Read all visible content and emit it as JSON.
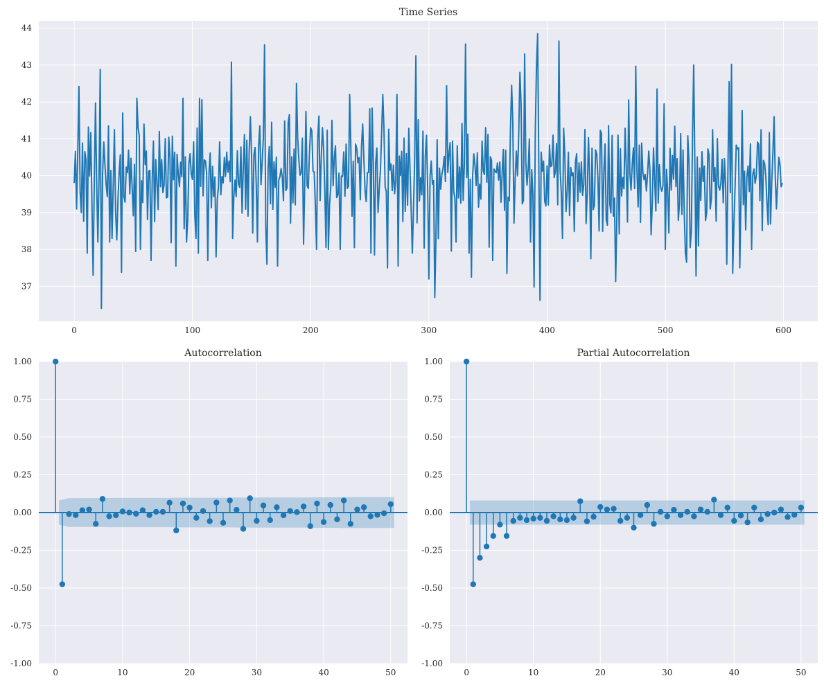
{
  "figure": {
    "background": "#ffffff",
    "axes_bg": "#EAEAF2",
    "grid_color": "#ffffff",
    "accent": "#1f77b4"
  },
  "chart_data": [
    {
      "id": "ts",
      "type": "line",
      "title": "Time Series",
      "xlabel": "",
      "ylabel": "",
      "xlim": [
        -29.95,
        628.95
      ],
      "ylim": [
        36.05,
        44.2
      ],
      "xticks": [
        0,
        100,
        200,
        300,
        400,
        500,
        600
      ],
      "yticks": [
        37,
        38,
        39,
        40,
        41,
        42,
        43,
        44
      ],
      "grid": true,
      "n_points": 600,
      "seed": 7,
      "mean": 40.0,
      "sd": 0.95,
      "series": [
        {
          "name": "series",
          "color": "#1f77b4",
          "anchor_points": [
            [
              0,
              39.8
            ],
            [
              1,
              40.66
            ],
            [
              2,
              39.1
            ],
            [
              4,
              42.42
            ],
            [
              6,
              39.0
            ],
            [
              9,
              40.65
            ],
            [
              11,
              37.9
            ],
            [
              14,
              41.17
            ],
            [
              16,
              37.3
            ],
            [
              18,
              41.97
            ],
            [
              20,
              38.2
            ],
            [
              22,
              42.88
            ],
            [
              23,
              36.4
            ],
            [
              26,
              40.3
            ],
            [
              29,
              41.35
            ],
            [
              30,
              38.2
            ],
            [
              32,
              38.3
            ],
            [
              34,
              41.25
            ],
            [
              36,
              38.26
            ],
            [
              40,
              37.38
            ],
            [
              41,
              41.7
            ],
            [
              54,
              41.3
            ],
            [
              56,
              38.0
            ],
            [
              59,
              41.4
            ],
            [
              65,
              37.7
            ],
            [
              72,
              41.2
            ],
            [
              86,
              37.55
            ],
            [
              92,
              42.1
            ],
            [
              95,
              38.2
            ],
            [
              103,
              38.3
            ],
            [
              108,
              42.06
            ],
            [
              113,
              37.7
            ],
            [
              120,
              37.8
            ],
            [
              133,
              43.08
            ],
            [
              149,
              41.6
            ],
            [
              155,
              38.2
            ],
            [
              157,
              41.35
            ],
            [
              161,
              43.55
            ],
            [
              163,
              37.6
            ],
            [
              167,
              41.45
            ],
            [
              172,
              37.55
            ],
            [
              181,
              41.45
            ],
            [
              188,
              42.5
            ],
            [
              200,
              41.3
            ],
            [
              205,
              38.0
            ],
            [
              210,
              41.3
            ],
            [
              215,
              38.0
            ],
            [
              218,
              41.5
            ],
            [
              225,
              38.0
            ],
            [
              233,
              42.2
            ],
            [
              237,
              38.05
            ],
            [
              244,
              41.4
            ],
            [
              254,
              37.85
            ],
            [
              261,
              42.2
            ],
            [
              265,
              37.5
            ],
            [
              273,
              42.2
            ],
            [
              274,
              37.55
            ],
            [
              281,
              40.6
            ],
            [
              286,
              37.9
            ],
            [
              289,
              43.25
            ],
            [
              300,
              37.2
            ],
            [
              305,
              36.7
            ],
            [
              315,
              42.44
            ],
            [
              323,
              38.2
            ],
            [
              331,
              43.57
            ],
            [
              336,
              37.25
            ],
            [
              348,
              41.3
            ],
            [
              354,
              37.7
            ],
            [
              366,
              37.35
            ],
            [
              370,
              42.45
            ],
            [
              377,
              42.8
            ],
            [
              381,
              43.3
            ],
            [
              386,
              38.2
            ],
            [
              389,
              36.98
            ],
            [
              391,
              42.95
            ],
            [
              392,
              43.85
            ],
            [
              394,
              36.62
            ],
            [
              405,
              41.1
            ],
            [
              410,
              43.65
            ],
            [
              413,
              38.3
            ],
            [
              437,
              37.75
            ],
            [
              444,
              38.5
            ],
            [
              458,
              37.13
            ],
            [
              460,
              41.1
            ],
            [
              475,
              42.97
            ],
            [
              493,
              42.35
            ],
            [
              500,
              38.0
            ],
            [
              518,
              37.65
            ],
            [
              521,
              38.05
            ],
            [
              524,
              43.0
            ],
            [
              526,
              37.28
            ],
            [
              528,
              38.1
            ],
            [
              552,
              37.6
            ],
            [
              554,
              42.55
            ],
            [
              556,
              43.02
            ],
            [
              557,
              37.35
            ],
            [
              563,
              37.5
            ],
            [
              573,
              38.0
            ],
            [
              592,
              41.6
            ],
            [
              594,
              39.1
            ],
            [
              596,
              40.5
            ],
            [
              598,
              39.7
            ],
            [
              599,
              39.8
            ]
          ]
        }
      ]
    },
    {
      "id": "acf",
      "type": "stem",
      "title": "Autocorrelation",
      "xlabel": "",
      "ylabel": "",
      "xlim": [
        -2.5,
        52.5
      ],
      "ylim": [
        -1.0,
        1.0
      ],
      "xticks": [
        0,
        10,
        20,
        30,
        40,
        50
      ],
      "yticks": [
        -1.0,
        -0.75,
        -0.5,
        -0.25,
        0.0,
        0.25,
        0.5,
        0.75,
        1.0
      ],
      "grid": true,
      "confint_hi": [
        0.08,
        0.095,
        0.095,
        0.096,
        0.096,
        0.096,
        0.096,
        0.097,
        0.097,
        0.097,
        0.097,
        0.097,
        0.097,
        0.097,
        0.097,
        0.097,
        0.097,
        0.098,
        0.098,
        0.098,
        0.098,
        0.098,
        0.098,
        0.098,
        0.098,
        0.098,
        0.099,
        0.099,
        0.099,
        0.1,
        0.1,
        0.1,
        0.1,
        0.1,
        0.1,
        0.1,
        0.1,
        0.1,
        0.101,
        0.101,
        0.101,
        0.101,
        0.102,
        0.102,
        0.102,
        0.102,
        0.102,
        0.102,
        0.102,
        0.102
      ],
      "values": [
        1.0,
        -0.475,
        -0.01,
        -0.017,
        0.015,
        0.02,
        -0.075,
        0.09,
        -0.025,
        -0.018,
        0.007,
        0.0,
        -0.008,
        0.015,
        -0.017,
        0.005,
        0.005,
        0.065,
        -0.118,
        0.06,
        0.033,
        -0.035,
        0.01,
        -0.057,
        0.066,
        -0.068,
        0.08,
        0.018,
        -0.108,
        0.095,
        -0.055,
        0.047,
        -0.05,
        0.035,
        -0.018,
        0.01,
        0.003,
        0.04,
        -0.09,
        0.06,
        -0.063,
        0.05,
        -0.045,
        0.08,
        -0.075,
        0.02,
        0.035,
        -0.025,
        -0.015,
        -0.005,
        0.055
      ]
    },
    {
      "id": "pacf",
      "type": "stem",
      "title": "Partial Autocorrelation",
      "xlabel": "",
      "ylabel": "",
      "xlim": [
        -2.5,
        52.5
      ],
      "ylim": [
        -1.0,
        1.0
      ],
      "xticks": [
        0,
        10,
        20,
        30,
        40,
        50
      ],
      "yticks": [
        -1.0,
        -0.75,
        -0.5,
        -0.25,
        0.0,
        0.25,
        0.5,
        0.75,
        1.0
      ],
      "grid": true,
      "confint_const": 0.08,
      "values": [
        1.0,
        -0.475,
        -0.3,
        -0.225,
        -0.155,
        -0.08,
        -0.155,
        -0.055,
        -0.035,
        -0.05,
        -0.04,
        -0.035,
        -0.055,
        -0.025,
        -0.045,
        -0.05,
        -0.035,
        0.075,
        -0.058,
        -0.028,
        0.037,
        0.02,
        0.025,
        -0.055,
        -0.035,
        -0.1,
        -0.017,
        0.05,
        -0.075,
        0.005,
        -0.025,
        0.018,
        -0.017,
        0.005,
        -0.025,
        0.02,
        0.005,
        0.085,
        -0.017,
        0.033,
        -0.055,
        -0.02,
        -0.065,
        0.033,
        -0.045,
        -0.01,
        0.0,
        0.02,
        -0.03,
        -0.015,
        0.033
      ]
    }
  ]
}
